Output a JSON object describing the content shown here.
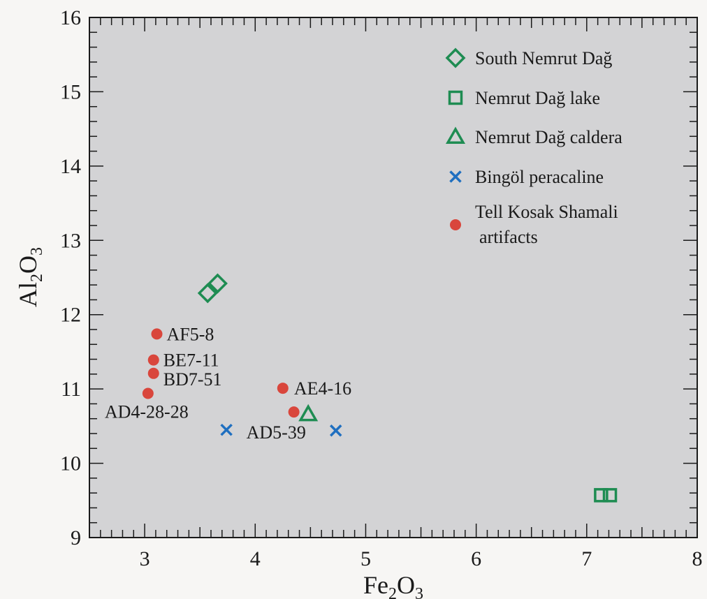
{
  "chart_data": {
    "type": "scatter",
    "xlabel": "Fe2O3",
    "ylabel": "Al2O3",
    "xlim": [
      2.5,
      8
    ],
    "ylim": [
      9,
      16
    ],
    "x_ticks": [
      3,
      4,
      5,
      6,
      7,
      8
    ],
    "y_ticks": [
      9,
      10,
      11,
      12,
      13,
      14,
      15,
      16
    ],
    "grid": false,
    "legend_position": "top-right",
    "colors": {
      "green": "#1e8c52",
      "blue": "#1f6fc0",
      "red": "#d9463c",
      "plot_bg": "#d3d3d5"
    },
    "series": [
      {
        "name": "South Nemrut Dağ",
        "marker": "diamond",
        "color": "#1e8c52",
        "points": [
          {
            "x": 3.57,
            "y": 12.29
          },
          {
            "x": 3.66,
            "y": 12.42
          }
        ]
      },
      {
        "name": "Nemrut Dağ lake",
        "marker": "square",
        "color": "#1e8c52",
        "points": [
          {
            "x": 7.13,
            "y": 9.57
          },
          {
            "x": 7.21,
            "y": 9.57
          }
        ]
      },
      {
        "name": "Nemrut Dağ caldera",
        "marker": "triangle",
        "color": "#1e8c52",
        "points": [
          {
            "x": 4.48,
            "y": 10.66
          }
        ]
      },
      {
        "name": "Bingöl peracaline",
        "marker": "cross",
        "color": "#1f6fc0",
        "points": [
          {
            "x": 3.74,
            "y": 10.45
          },
          {
            "x": 4.73,
            "y": 10.44
          }
        ]
      },
      {
        "name": "Tell Kosak Shamali artifacts",
        "marker": "circle",
        "color": "#d9463c",
        "points": [
          {
            "x": 3.11,
            "y": 11.74,
            "label": "AF5-8"
          },
          {
            "x": 3.08,
            "y": 11.39,
            "label": "BE7-11"
          },
          {
            "x": 3.08,
            "y": 11.21,
            "label": "BD7-51"
          },
          {
            "x": 3.03,
            "y": 10.94,
            "label": "AD4-28-28"
          },
          {
            "x": 4.25,
            "y": 11.01,
            "label": "AE4-16"
          },
          {
            "x": 4.35,
            "y": 10.69,
            "label": "AD5-39"
          }
        ]
      }
    ]
  }
}
